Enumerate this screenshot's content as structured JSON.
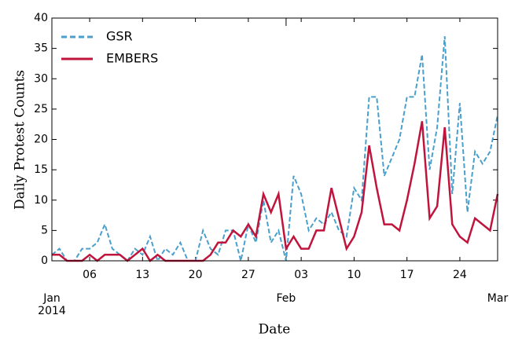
{
  "chart_data": {
    "type": "line",
    "xlabel": "Date",
    "ylabel": "Daily Protest Counts",
    "x": [
      "2014-01-01",
      "2014-01-02",
      "2014-01-03",
      "2014-01-04",
      "2014-01-05",
      "2014-01-06",
      "2014-01-07",
      "2014-01-08",
      "2014-01-09",
      "2014-01-10",
      "2014-01-11",
      "2014-01-12",
      "2014-01-13",
      "2014-01-14",
      "2014-01-15",
      "2014-01-16",
      "2014-01-17",
      "2014-01-18",
      "2014-01-19",
      "2014-01-20",
      "2014-01-21",
      "2014-01-22",
      "2014-01-23",
      "2014-01-24",
      "2014-01-25",
      "2014-01-26",
      "2014-01-27",
      "2014-01-28",
      "2014-01-29",
      "2014-01-30",
      "2014-01-31",
      "2014-02-01",
      "2014-02-02",
      "2014-02-03",
      "2014-02-04",
      "2014-02-05",
      "2014-02-06",
      "2014-02-07",
      "2014-02-08",
      "2014-02-09",
      "2014-02-10",
      "2014-02-11",
      "2014-02-12",
      "2014-02-13",
      "2014-02-14",
      "2014-02-15",
      "2014-02-16",
      "2014-02-17",
      "2014-02-18",
      "2014-02-19",
      "2014-02-20",
      "2014-02-21",
      "2014-02-22",
      "2014-02-23",
      "2014-02-24",
      "2014-02-25",
      "2014-02-26",
      "2014-02-27",
      "2014-02-28",
      "2014-03-01"
    ],
    "series": [
      {
        "name": "GSR",
        "color": "#4a9fcc",
        "dash": true,
        "values": [
          1,
          2,
          0,
          0,
          2,
          2,
          3,
          6,
          2,
          1,
          0,
          2,
          1,
          4,
          0,
          2,
          1,
          3,
          0,
          0,
          5,
          2,
          1,
          5,
          5,
          0,
          6,
          3,
          10,
          3,
          5,
          0,
          14,
          11,
          5,
          7,
          6,
          8,
          5,
          4,
          12,
          10,
          27,
          27,
          14,
          17,
          20,
          27,
          27,
          34,
          15,
          22,
          37,
          11,
          26,
          8,
          18,
          16,
          18,
          24
        ]
      },
      {
        "name": "EMBERS",
        "color": "#c0143c",
        "dash": false,
        "values": [
          1,
          1,
          0,
          0,
          0,
          1,
          0,
          1,
          1,
          1,
          0,
          1,
          2,
          0,
          1,
          0,
          0,
          0,
          0,
          0,
          0,
          1,
          3,
          3,
          5,
          4,
          6,
          4,
          11,
          8,
          11,
          2,
          4,
          2,
          2,
          5,
          5,
          12,
          7,
          2,
          4,
          8,
          19,
          12,
          6,
          6,
          5,
          10,
          16,
          23,
          7,
          9,
          22,
          6,
          4,
          3,
          7,
          6,
          5,
          11
        ]
      }
    ],
    "xlim": [
      "2014-01-01",
      "2014-03-01"
    ],
    "xticks": [
      {
        "value": "2014-01-01",
        "label": "Jan\n2014"
      },
      {
        "value": "2014-01-06",
        "label": "06"
      },
      {
        "value": "2014-01-13",
        "label": "13"
      },
      {
        "value": "2014-01-20",
        "label": "20"
      },
      {
        "value": "2014-01-27",
        "label": "27"
      },
      {
        "value": "2014-02-01",
        "label": "Feb"
      },
      {
        "value": "2014-02-03",
        "label": "03"
      },
      {
        "value": "2014-02-10",
        "label": "10"
      },
      {
        "value": "2014-02-17",
        "label": "17"
      },
      {
        "value": "2014-02-24",
        "label": "24"
      },
      {
        "value": "2014-03-01",
        "label": "Mar"
      }
    ],
    "ylim": [
      0,
      40
    ],
    "yticks": [
      0,
      5,
      10,
      15,
      20,
      25,
      30,
      35,
      40
    ],
    "legend": "upper left",
    "grid": false
  }
}
